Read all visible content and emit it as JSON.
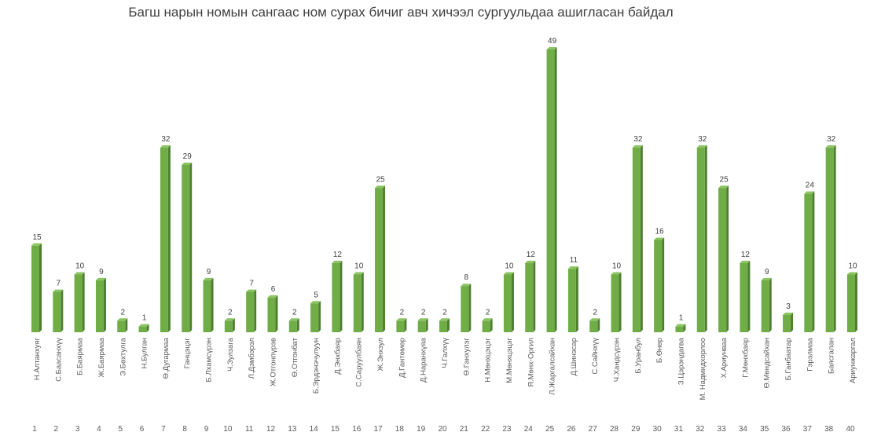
{
  "chart_data": {
    "type": "bar",
    "title": "Багш нарын номын сангаас ном сурах бичиг авч хичээл сургуульдаа ашигласан  байдал",
    "xlabel": "",
    "ylabel": "",
    "ylim": [
      0,
      49
    ],
    "grid": false,
    "bar_color": "#70AD47",
    "numbers": [
      "1",
      "2",
      "3",
      "4",
      "5",
      "6",
      "7",
      "8",
      "9",
      "10",
      "11",
      "12",
      "13",
      "14",
      "15",
      "16",
      "17",
      "18",
      "19",
      "20",
      "21",
      "22",
      "23",
      "24",
      "25",
      "26",
      "27",
      "28",
      "29",
      "30",
      "31",
      "32",
      "33",
      "34",
      "35",
      "36",
      "37",
      "38",
      "40"
    ],
    "categories": [
      "Н.Алтанхуяг",
      "С.Баасанхүү",
      "Б.Баярмаа",
      "Ж.Баярмаа",
      "Э.Бөхтулга",
      "Н.Булган",
      "Ө.Дугармаа",
      "Ганцэцэг",
      "Б.Лхамсүрэн",
      "Ч.Зулзага",
      "Л.Дэмбэрэл",
      "Ж.Отгонпүрэв",
      "Ө.Отгонбат",
      "Б.Эрдэнэчулуун",
      "Д.Энхбаяр",
      "С.Саруулбаян",
      "Ж.Энхзул",
      "Д.Гантөмөр",
      "Д.Наранхүяа",
      "Ч.Галхүү",
      "Ө.Ганхулэг",
      "Н.Мөнхцэцэг",
      "М.Мөнхцэцэг",
      "Я.Мөнх-Оргил",
      "Л.Жаргалсайхан",
      "Д.Шинэсар",
      "С.Сайнхүү",
      "Ч.Хандсүрэн",
      "Б.Уранбул",
      "Б.Өнөр",
      "З.Цэрэндагва",
      "М. Надмидхорлоо",
      "Х.Ариунваа",
      "Г.Мөнхбаяр",
      "Ө.Мөндсайхан",
      "Б.Ганбаатар",
      "Гэрэлмаа",
      "Баясгалан",
      "Ариунжаргал"
    ],
    "values": [
      15,
      7,
      10,
      9,
      2,
      1,
      32,
      29,
      9,
      2,
      7,
      6,
      2,
      5,
      12,
      10,
      25,
      2,
      2,
      2,
      8,
      2,
      10,
      12,
      49,
      11,
      2,
      10,
      32,
      16,
      1,
      32,
      25,
      12,
      9,
      3,
      24,
      32,
      10
    ]
  }
}
